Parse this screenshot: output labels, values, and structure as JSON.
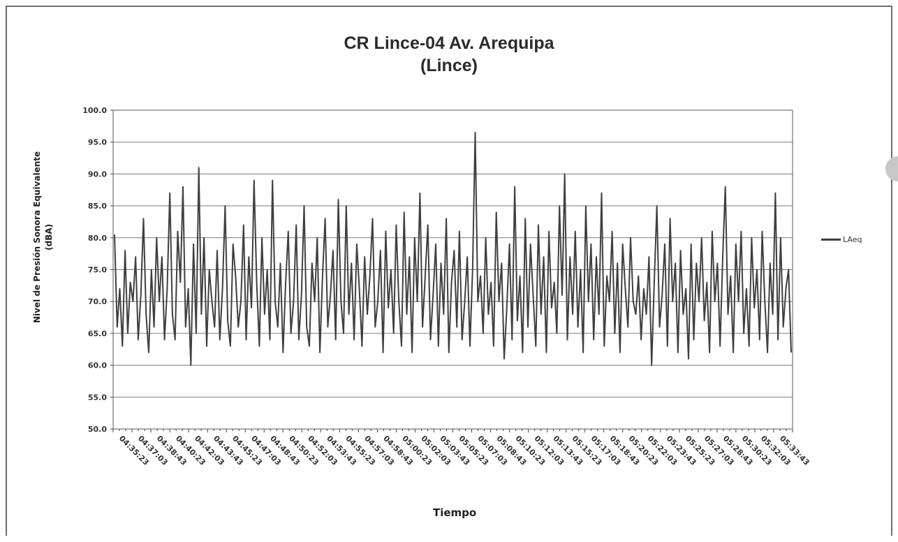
{
  "chart_data": {
    "type": "line",
    "title": "CR Lince-04 Av. Arequipa",
    "subtitle": "(Lince)",
    "xlabel": "Tiempo",
    "ylabel_line1": "Nivel de Presión Sonora Equivalente",
    "ylabel_line2": "(dBA)",
    "ylim": [
      50,
      100
    ],
    "y_ticks": [
      "100.0",
      "95.0",
      "90.0",
      "85.0",
      "80.0",
      "75.0",
      "70.0",
      "65.0",
      "60.0",
      "55.0",
      "50.0"
    ],
    "x_ticks": [
      "04:35:23",
      "04:37:03",
      "04:38:43",
      "04:40:23",
      "04:42:03",
      "04:43:43",
      "04:45:23",
      "04:47:03",
      "04:48:43",
      "04:50:23",
      "04:52:03",
      "04:53:43",
      "04:55:23",
      "04:57:03",
      "04:58:43",
      "05:00:23",
      "05:02:03",
      "05:03:43",
      "05:05:23",
      "05:07:03",
      "05:08:43",
      "05:10:23",
      "05:12:03",
      "05:13:43",
      "05:15:23",
      "05:17:03",
      "05:18:43",
      "05:20:23",
      "05:22:03",
      "05:23:43",
      "05:25:23",
      "05:27:03",
      "05:28:43",
      "05:30:23",
      "05:32:03",
      "05:33:43"
    ],
    "grid": "horizontal",
    "legend_position": "right",
    "series": [
      {
        "name": "LAeq",
        "color": "#3f3f3f",
        "values": [
          80.5,
          66,
          72,
          63,
          78,
          65,
          73,
          70,
          77,
          64,
          71,
          83,
          68,
          62,
          75,
          66,
          80,
          70,
          77,
          64,
          72,
          87,
          68,
          64,
          81,
          73,
          88,
          66,
          72,
          60,
          79,
          65,
          91,
          68,
          80,
          63,
          75,
          70,
          66,
          78,
          64,
          72,
          85,
          67,
          63,
          79,
          74,
          66,
          70,
          82,
          64,
          77,
          69,
          89,
          73,
          63,
          80,
          68,
          75,
          64,
          89,
          70,
          66,
          76,
          62,
          73,
          81,
          65,
          70,
          82,
          64,
          71,
          85,
          66,
          63,
          76,
          70,
          80,
          62,
          74,
          83,
          66,
          71,
          78,
          64,
          86,
          70,
          65,
          85,
          68,
          76,
          64,
          79,
          72,
          63,
          77,
          68,
          74,
          83,
          66,
          70,
          78,
          62,
          81,
          69,
          75,
          65,
          82,
          70,
          63,
          84,
          68,
          77,
          62,
          80,
          70,
          87,
          66,
          74,
          82,
          64,
          71,
          79,
          63,
          76,
          68,
          83,
          62,
          73,
          78,
          66,
          81,
          64,
          70,
          77,
          63,
          75,
          96.5,
          70,
          74,
          65,
          80,
          68,
          73,
          63,
          84,
          70,
          76,
          61,
          69,
          79,
          64,
          88,
          67,
          74,
          62,
          83,
          66,
          79,
          71,
          63,
          82,
          68,
          77,
          62,
          81,
          69,
          73,
          65,
          85,
          71,
          90,
          64,
          77,
          68,
          81,
          66,
          75,
          62,
          85,
          70,
          79,
          64,
          77,
          68,
          87,
          63,
          74,
          70,
          81,
          65,
          76,
          62,
          79,
          72,
          66,
          80,
          70,
          68,
          74,
          64,
          72,
          68,
          77,
          60,
          73,
          85,
          66,
          71,
          79,
          63,
          83,
          70,
          76,
          62,
          78,
          68,
          72,
          61,
          79,
          64,
          76,
          70,
          80,
          67,
          73,
          62,
          81,
          70,
          76,
          63,
          77,
          88,
          68,
          74,
          62,
          79,
          70,
          81,
          65,
          72,
          63,
          80,
          69,
          75,
          64,
          81,
          70,
          62,
          76,
          68,
          87,
          64,
          80,
          66,
          72,
          75,
          62
        ],
        "line_width": 2
      }
    ]
  }
}
